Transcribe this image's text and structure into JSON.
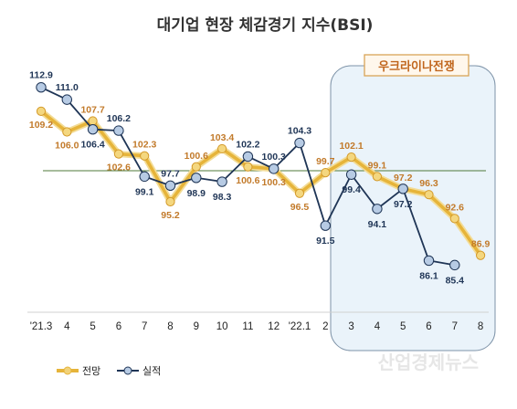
{
  "chart_data": {
    "type": "line",
    "title": "대기업 현장 체감경기 지수(BSI)",
    "categories": [
      "'21.3",
      "4",
      "5",
      "6",
      "7",
      "8",
      "9",
      "10",
      "11",
      "12",
      "'22.1",
      "2",
      "3",
      "4",
      "5",
      "6",
      "7",
      "8"
    ],
    "series": [
      {
        "name": "전망",
        "values": [
          109.2,
          106.0,
          107.7,
          102.6,
          102.3,
          95.2,
          100.6,
          103.4,
          100.6,
          100.3,
          96.5,
          99.7,
          102.1,
          99.1,
          97.2,
          96.3,
          92.6,
          86.9
        ],
        "color": "#e6b43a"
      },
      {
        "name": "실적",
        "values": [
          112.9,
          111.0,
          106.4,
          106.2,
          99.1,
          97.7,
          98.9,
          98.3,
          102.2,
          100.3,
          104.3,
          91.5,
          99.4,
          94.1,
          97.2,
          86.1,
          85.4,
          null
        ],
        "color": "#1f3556"
      }
    ],
    "reference_line": 100,
    "highlight_box": {
      "label": "우크라이나전쟁",
      "from_category": "3",
      "to_category": "8"
    },
    "watermark": "산업경제뉴스"
  }
}
